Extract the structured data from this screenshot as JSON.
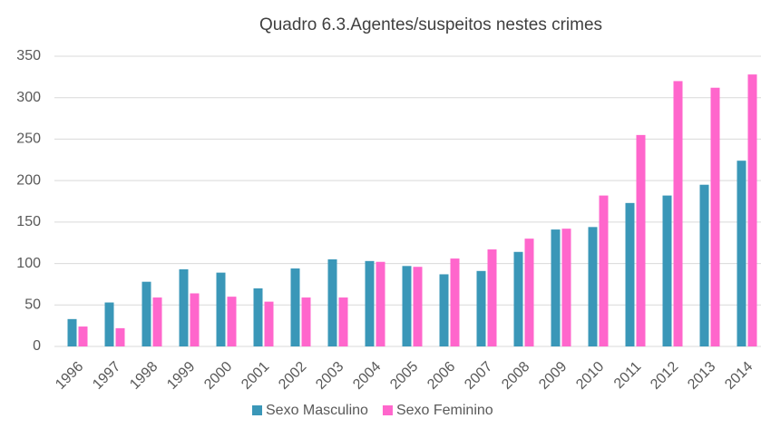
{
  "chart_data": {
    "type": "bar",
    "title": "Quadro 6.3.Agentes/suspeitos nestes crimes",
    "categories": [
      "1996",
      "1997",
      "1998",
      "1999",
      "2000",
      "2001",
      "2002",
      "2003",
      "2004",
      "2005",
      "2006",
      "2007",
      "2008",
      "2009",
      "2010",
      "2011",
      "2012",
      "2013",
      "2014"
    ],
    "series": [
      {
        "name": "Sexo Masculino",
        "color": "#3a97b8",
        "values": [
          33,
          53,
          78,
          93,
          89,
          70,
          94,
          105,
          103,
          97,
          87,
          91,
          114,
          141,
          144,
          173,
          182,
          195,
          224
        ]
      },
      {
        "name": "Sexo Feminino",
        "color": "#ff66cc",
        "values": [
          24,
          22,
          59,
          64,
          60,
          54,
          59,
          59,
          102,
          96,
          106,
          117,
          130,
          142,
          182,
          255,
          320,
          312,
          328
        ]
      }
    ],
    "ylim": [
      0,
      350
    ],
    "yticks": [
      0,
      50,
      100,
      150,
      200,
      250,
      300,
      350
    ],
    "grid": true,
    "legend": "bottom"
  }
}
